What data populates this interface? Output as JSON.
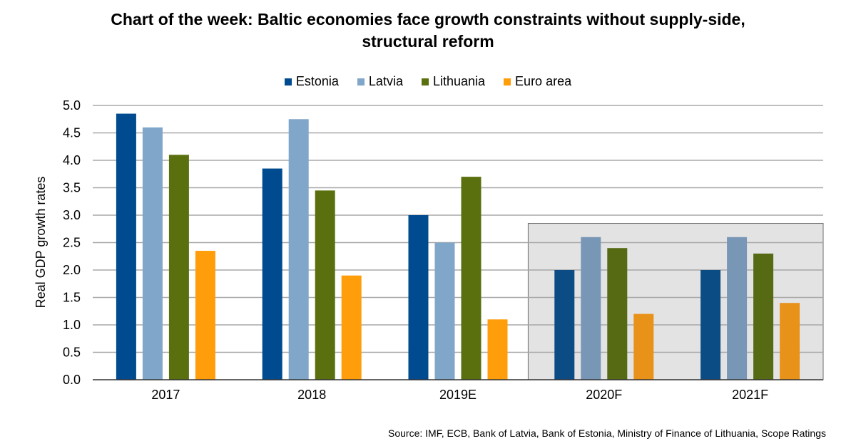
{
  "chart_data": {
    "type": "bar",
    "title_lines": [
      "Chart of the week: Baltic economies face growth constraints without supply-side,",
      "structural reform"
    ],
    "xlabel": "",
    "ylabel": "Real GDP growth rates",
    "ylim": [
      0,
      5.0
    ],
    "yticks": [
      "0.0",
      "0.5",
      "1.0",
      "1.5",
      "2.0",
      "2.5",
      "3.0",
      "3.5",
      "4.0",
      "4.5",
      "5.0"
    ],
    "ytick_values": [
      0,
      0.5,
      1.0,
      1.5,
      2.0,
      2.5,
      3.0,
      3.5,
      4.0,
      4.5,
      5.0
    ],
    "grid": true,
    "legend_position": "top-center",
    "categories": [
      "2017",
      "2018",
      "2019E",
      "2020F",
      "2021F"
    ],
    "forecast_highlight": {
      "categories": [
        "2020F",
        "2021F"
      ],
      "shade_color": "#e3e3e3",
      "border_color": "#6b6b6b"
    },
    "series": [
      {
        "name": "Estonia",
        "color": "#004a8f",
        "forecast_color": "#0c4c85",
        "values": [
          4.85,
          3.85,
          3.0,
          2.0,
          2.0
        ]
      },
      {
        "name": "Latvia",
        "color": "#80a6c9",
        "forecast_color": "#7897b6",
        "values": [
          4.6,
          4.75,
          2.5,
          2.6,
          2.6
        ]
      },
      {
        "name": "Lithuania",
        "color": "#5a700f",
        "forecast_color": "#566a14",
        "values": [
          4.1,
          3.45,
          3.7,
          2.4,
          2.3
        ]
      },
      {
        "name": "Euro area",
        "color": "#ff9d0a",
        "forecast_color": "#e8921a",
        "values": [
          2.35,
          1.9,
          1.1,
          1.2,
          1.4
        ]
      }
    ],
    "source": "Source: IMF,  ECB, Bank of Latvia, Bank of Estonia, Ministry  of Finance of Lithuania,  Scope Ratings"
  }
}
